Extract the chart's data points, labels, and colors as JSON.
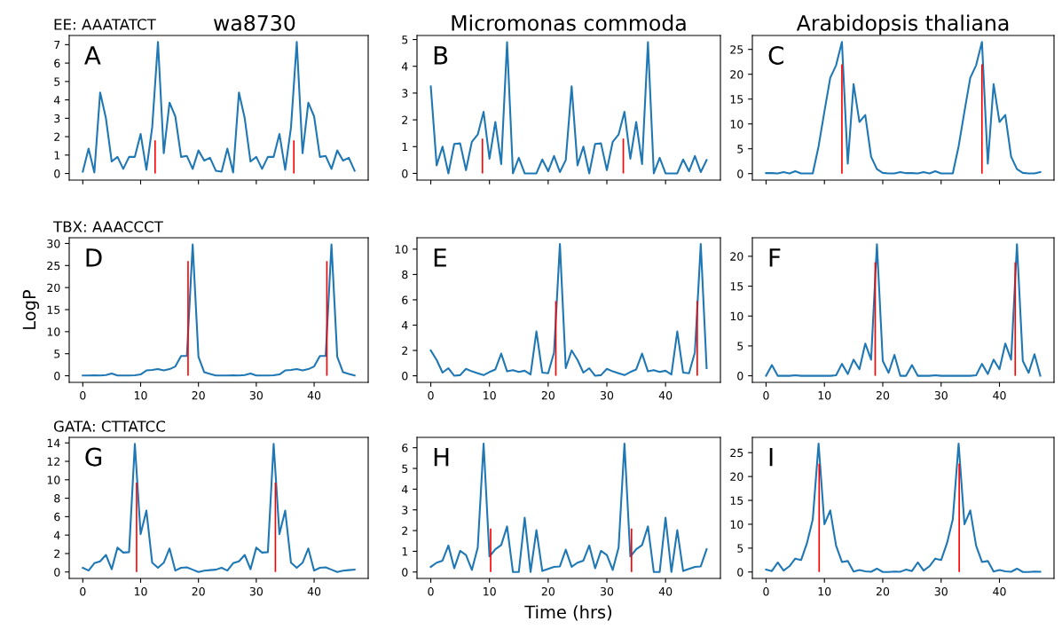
{
  "chart_data": [
    {
      "type": "line",
      "title": "wa8730",
      "subtitle": "EE: AAATATCT",
      "annotations": [
        "A"
      ],
      "tick_labels": "y",
      "x": [
        0,
        1,
        2,
        3,
        4,
        5,
        6,
        7,
        8,
        9,
        10,
        11,
        12,
        13,
        14,
        15,
        16,
        17,
        18,
        19,
        20,
        21,
        22,
        23,
        24,
        25,
        26,
        27,
        28,
        29,
        30,
        31,
        32,
        33,
        34,
        35,
        36,
        37,
        38,
        39,
        40,
        41,
        42,
        43,
        44,
        45,
        46,
        47
      ],
      "xlim": [
        -2.35,
        49.35
      ],
      "xticks": [
        0,
        10,
        20,
        30,
        40
      ],
      "ylim": [
        -0.36,
        7.5
      ],
      "yticks": [
        0,
        1,
        2,
        3,
        4,
        5,
        6,
        7
      ],
      "series": [
        {
          "color": "#1f77b4",
          "values": [
            0.1,
            1.35,
            0.05,
            4.4,
            3.0,
            0.65,
            0.9,
            0.25,
            0.9,
            0.9,
            2.15,
            0.2,
            2.5,
            7.15,
            1.1,
            3.85,
            3.1,
            0.9,
            0.95,
            0.25,
            1.25,
            0.7,
            0.85,
            0.15,
            0.1,
            1.35,
            0.05,
            4.4,
            3.0,
            0.65,
            0.9,
            0.25,
            0.9,
            0.9,
            2.15,
            0.2,
            2.5,
            7.15,
            1.1,
            3.85,
            3.1,
            0.9,
            0.95,
            0.25,
            1.25,
            0.7,
            0.85,
            0.15
          ]
        },
        {
          "type": "bar",
          "color": "#ff0000",
          "x": [
            12.5,
            36.5
          ],
          "values": [
            1.8,
            1.8
          ]
        }
      ]
    },
    {
      "type": "line",
      "title": "Micromonas commoda",
      "annotations": [
        "B"
      ],
      "tick_labels": "y",
      "x": [
        0,
        1,
        2,
        3,
        4,
        5,
        6,
        7,
        8,
        9,
        10,
        11,
        12,
        13,
        14,
        15,
        16,
        17,
        18,
        19,
        20,
        21,
        22,
        23,
        24,
        25,
        26,
        27,
        28,
        29,
        30,
        31,
        32,
        33,
        34,
        35,
        36,
        37,
        38,
        39,
        40,
        41,
        42,
        43,
        44,
        45,
        46,
        47
      ],
      "xlim": [
        -2.35,
        49.35
      ],
      "xticks": [
        0,
        10,
        20,
        30,
        40
      ],
      "ylim": [
        -0.25,
        5.15
      ],
      "yticks": [
        0,
        1,
        2,
        3,
        4,
        5
      ],
      "series": [
        {
          "color": "#1f77b4",
          "values": [
            3.25,
            0.3,
            1.0,
            0.0,
            1.1,
            1.12,
            0.12,
            1.18,
            1.45,
            2.3,
            0.55,
            1.92,
            0.35,
            4.9,
            0.0,
            0.58,
            0.0,
            0.0,
            0.0,
            0.52,
            0.08,
            0.65,
            0.05,
            0.5,
            3.25,
            0.3,
            1.0,
            0.0,
            1.1,
            1.12,
            0.12,
            1.18,
            1.45,
            2.3,
            0.55,
            1.92,
            0.35,
            4.9,
            0.0,
            0.58,
            0.0,
            0.0,
            0.0,
            0.52,
            0.08,
            0.65,
            0.05,
            0.5
          ]
        },
        {
          "type": "bar",
          "color": "#ff0000",
          "x": [
            8.8,
            32.8
          ],
          "values": [
            1.3,
            1.3
          ]
        }
      ]
    },
    {
      "type": "line",
      "title": "Arabidopsis thaliana",
      "annotations": [
        "C"
      ],
      "tick_labels": "y",
      "x": [
        0,
        1,
        2,
        3,
        4,
        5,
        6,
        7,
        8,
        9,
        10,
        11,
        12,
        13,
        14,
        15,
        16,
        17,
        18,
        19,
        20,
        21,
        22,
        23,
        24,
        25,
        26,
        27,
        28,
        29,
        30,
        31,
        32,
        33,
        34,
        35,
        36,
        37,
        38,
        39,
        40,
        41,
        42,
        43,
        44,
        45,
        46,
        47
      ],
      "xlim": [
        -2.35,
        49.35
      ],
      "xticks": [
        0,
        10,
        20,
        30,
        40
      ],
      "ylim": [
        -1.3,
        27.8
      ],
      "yticks": [
        0,
        5,
        10,
        15,
        20,
        25
      ],
      "series": [
        {
          "color": "#1f77b4",
          "values": [
            0.1,
            0.1,
            0.05,
            0.3,
            0.05,
            0.5,
            0.05,
            0.05,
            0.05,
            5.5,
            12.5,
            19.3,
            21.8,
            26.5,
            2.0,
            18.0,
            10.4,
            11.8,
            3.4,
            0.9,
            0.15,
            0.05,
            0.05,
            0.3,
            0.1,
            0.1,
            0.05,
            0.3,
            0.05,
            0.5,
            0.05,
            0.05,
            0.05,
            5.5,
            12.5,
            19.3,
            21.8,
            26.5,
            2.0,
            18.0,
            10.4,
            11.8,
            3.4,
            0.9,
            0.15,
            0.05,
            0.05,
            0.3
          ]
        },
        {
          "type": "bar",
          "color": "#ff0000",
          "x": [
            13,
            37
          ],
          "values": [
            22,
            22
          ]
        }
      ]
    },
    {
      "type": "line",
      "subtitle": "TBX: AAACCCT",
      "ylabel": "LogP",
      "annotations": [
        "D"
      ],
      "x": [
        0,
        1,
        2,
        3,
        4,
        5,
        6,
        7,
        8,
        9,
        10,
        11,
        12,
        13,
        14,
        15,
        16,
        17,
        18,
        19,
        20,
        21,
        22,
        23,
        24,
        25,
        26,
        27,
        28,
        29,
        30,
        31,
        32,
        33,
        34,
        35,
        36,
        37,
        38,
        39,
        40,
        41,
        42,
        43,
        44,
        45,
        46,
        47
      ],
      "xlim": [
        -2.35,
        49.35
      ],
      "xticks": [
        0,
        10,
        20,
        30,
        40
      ],
      "ylim": [
        -1.5,
        31.3
      ],
      "yticks": [
        0,
        5,
        10,
        15,
        20,
        25,
        30
      ],
      "series": [
        {
          "color": "#1f77b4",
          "values": [
            0.05,
            0.05,
            0.1,
            0.05,
            0.15,
            0.5,
            0.05,
            0.05,
            0.05,
            0.1,
            0.3,
            1.2,
            1.3,
            1.5,
            1.2,
            1.5,
            2.1,
            4.5,
            4.5,
            29.8,
            4.3,
            0.8,
            0.4,
            0.05,
            0.05,
            0.05,
            0.1,
            0.05,
            0.15,
            0.5,
            0.05,
            0.05,
            0.05,
            0.1,
            0.3,
            1.2,
            1.3,
            1.5,
            1.2,
            1.5,
            2.1,
            4.5,
            4.5,
            29.8,
            4.3,
            0.8,
            0.4,
            0.05
          ]
        },
        {
          "type": "bar",
          "color": "#ff0000",
          "x": [
            18.2,
            42.2
          ],
          "values": [
            26,
            26
          ]
        }
      ]
    },
    {
      "type": "line",
      "annotations": [
        "E"
      ],
      "x": [
        0,
        1,
        2,
        3,
        4,
        5,
        6,
        7,
        8,
        9,
        10,
        11,
        12,
        13,
        14,
        15,
        16,
        17,
        18,
        19,
        20,
        21,
        22,
        23,
        24,
        25,
        26,
        27,
        28,
        29,
        30,
        31,
        32,
        33,
        34,
        35,
        36,
        37,
        38,
        39,
        40,
        41,
        42,
        43,
        44,
        45,
        46,
        47
      ],
      "xlim": [
        -2.35,
        49.35
      ],
      "xticks": [
        0,
        10,
        20,
        30,
        40
      ],
      "ylim": [
        -0.52,
        10.9
      ],
      "yticks": [
        0,
        2,
        4,
        6,
        8,
        10
      ],
      "series": [
        {
          "color": "#1f77b4",
          "values": [
            2.0,
            1.25,
            0.25,
            0.6,
            0.0,
            0.05,
            0.55,
            0.35,
            0.2,
            0.05,
            0.3,
            0.5,
            1.75,
            0.35,
            0.45,
            0.3,
            0.4,
            0.1,
            3.5,
            0.25,
            0.2,
            1.85,
            10.4,
            0.6,
            2.0,
            1.25,
            0.25,
            0.6,
            0.0,
            0.05,
            0.55,
            0.35,
            0.2,
            0.05,
            0.3,
            0.5,
            1.75,
            0.35,
            0.45,
            0.3,
            0.4,
            0.1,
            3.5,
            0.25,
            0.2,
            1.85,
            10.4,
            0.6
          ]
        },
        {
          "type": "bar",
          "color": "#ff0000",
          "x": [
            21.3,
            45.4
          ],
          "values": [
            5.9,
            5.9
          ]
        }
      ]
    },
    {
      "type": "line",
      "annotations": [
        "F"
      ],
      "x": [
        0,
        1,
        2,
        3,
        4,
        5,
        6,
        7,
        8,
        9,
        10,
        11,
        12,
        13,
        14,
        15,
        16,
        17,
        18,
        19,
        20,
        21,
        22,
        23,
        24,
        25,
        26,
        27,
        28,
        29,
        30,
        31,
        32,
        33,
        34,
        35,
        36,
        37,
        38,
        39,
        40,
        41,
        42,
        43,
        44,
        45,
        46,
        47
      ],
      "xlim": [
        -2.35,
        49.35
      ],
      "xticks": [
        0,
        10,
        20,
        30,
        40
      ],
      "ylim": [
        -1.1,
        23.1
      ],
      "yticks": [
        0,
        5,
        10,
        15,
        20
      ],
      "series": [
        {
          "color": "#1f77b4",
          "values": [
            0.0,
            1.8,
            0.0,
            0.0,
            0.0,
            0.1,
            0.0,
            0.0,
            0.0,
            0.0,
            0.0,
            0.0,
            0.1,
            2.0,
            0.3,
            2.7,
            1.1,
            5.4,
            2.7,
            22.0,
            2.5,
            0.5,
            3.5,
            0.0,
            0.0,
            1.8,
            0.0,
            0.0,
            0.0,
            0.1,
            0.0,
            0.0,
            0.0,
            0.0,
            0.0,
            0.0,
            0.1,
            2.0,
            0.3,
            2.7,
            1.1,
            5.4,
            2.7,
            22.0,
            2.5,
            0.5,
            3.6,
            0.0
          ]
        },
        {
          "type": "bar",
          "color": "#ff0000",
          "x": [
            18.7,
            42.7
          ],
          "values": [
            19,
            19
          ]
        }
      ]
    },
    {
      "type": "line",
      "subtitle": "GATA: CTTATCC",
      "annotations": [
        "G"
      ],
      "x": [
        0,
        1,
        2,
        3,
        4,
        5,
        6,
        7,
        8,
        9,
        10,
        11,
        12,
        13,
        14,
        15,
        16,
        17,
        18,
        19,
        20,
        21,
        22,
        23,
        24,
        25,
        26,
        27,
        28,
        29,
        30,
        31,
        32,
        33,
        34,
        35,
        36,
        37,
        38,
        39,
        40,
        41,
        42,
        43,
        44,
        45,
        46,
        47
      ],
      "xlim": [
        -2.35,
        49.35
      ],
      "xticks": [
        0,
        10,
        20,
        30,
        40
      ],
      "ylim": [
        -0.7,
        14.6
      ],
      "yticks": [
        0,
        2,
        4,
        6,
        8,
        10,
        12,
        14
      ],
      "series": [
        {
          "color": "#1f77b4",
          "values": [
            0.45,
            0.15,
            0.95,
            1.15,
            1.85,
            0.3,
            2.65,
            2.1,
            2.15,
            13.9,
            4.1,
            6.65,
            1.0,
            0.45,
            1.0,
            2.55,
            0.15,
            0.45,
            0.5,
            0.25,
            0.0,
            0.15,
            0.2,
            0.25,
            0.45,
            0.15,
            0.95,
            1.15,
            1.85,
            0.3,
            2.65,
            2.1,
            2.15,
            13.9,
            4.1,
            6.65,
            1.0,
            0.45,
            1.0,
            2.55,
            0.15,
            0.45,
            0.5,
            0.25,
            0.0,
            0.15,
            0.2,
            0.25
          ]
        },
        {
          "type": "bar",
          "color": "#ff0000",
          "x": [
            9.3,
            33.3
          ],
          "values": [
            9.7,
            9.7
          ]
        }
      ]
    },
    {
      "type": "line",
      "xlabel": "Time (hrs)",
      "annotations": [
        "H"
      ],
      "x": [
        0,
        1,
        2,
        3,
        4,
        5,
        6,
        7,
        8,
        9,
        10,
        11,
        12,
        13,
        14,
        15,
        16,
        17,
        18,
        19,
        20,
        21,
        22,
        23,
        24,
        25,
        26,
        27,
        28,
        29,
        30,
        31,
        32,
        33,
        34,
        35,
        36,
        37,
        38,
        39,
        40,
        41,
        42,
        43,
        44,
        45,
        46,
        47
      ],
      "xlim": [
        -2.35,
        49.35
      ],
      "xticks": [
        0,
        10,
        20,
        30,
        40
      ],
      "ylim": [
        -0.31,
        6.5
      ],
      "yticks": [
        0,
        1,
        2,
        3,
        4,
        5,
        6
      ],
      "series": [
        {
          "color": "#1f77b4",
          "values": [
            0.25,
            0.45,
            0.55,
            1.28,
            0.18,
            1.02,
            0.82,
            0.1,
            1.18,
            6.2,
            0.75,
            1.1,
            1.3,
            2.2,
            0.0,
            0.0,
            2.62,
            0.0,
            2.02,
            0.05,
            0.15,
            0.25,
            0.27,
            1.08,
            0.25,
            0.45,
            0.55,
            1.28,
            0.18,
            1.02,
            0.82,
            0.1,
            1.18,
            6.2,
            0.75,
            1.1,
            1.3,
            2.2,
            0.0,
            0.0,
            2.62,
            0.0,
            2.02,
            0.05,
            0.15,
            0.25,
            0.27,
            1.1
          ]
        },
        {
          "type": "bar",
          "color": "#ff0000",
          "x": [
            10.2,
            34.2
          ],
          "values": [
            2.1,
            2.1
          ]
        }
      ]
    },
    {
      "type": "line",
      "annotations": [
        "I"
      ],
      "x": [
        0,
        1,
        2,
        3,
        4,
        5,
        6,
        7,
        8,
        9,
        10,
        11,
        12,
        13,
        14,
        15,
        16,
        17,
        18,
        19,
        20,
        21,
        22,
        23,
        24,
        25,
        26,
        27,
        28,
        29,
        30,
        31,
        32,
        33,
        34,
        35,
        36,
        37,
        38,
        39,
        40,
        41,
        42,
        43,
        44,
        45,
        46,
        47
      ],
      "xlim": [
        -2.35,
        49.35
      ],
      "xticks": [
        0,
        10,
        20,
        30,
        40
      ],
      "ylim": [
        -1.35,
        28.2
      ],
      "yticks": [
        0,
        5,
        10,
        15,
        20,
        25
      ],
      "series": [
        {
          "color": "#1f77b4",
          "values": [
            0.5,
            0.2,
            2.0,
            0.3,
            1.2,
            2.8,
            2.5,
            6.0,
            11.0,
            26.9,
            10.0,
            12.9,
            5.5,
            2.1,
            2.3,
            0.1,
            0.4,
            0.15,
            0.05,
            0.7,
            0.0,
            0.0,
            0.1,
            0.05,
            0.5,
            0.2,
            2.0,
            0.3,
            1.2,
            2.8,
            2.5,
            6.0,
            11.0,
            26.9,
            10.0,
            12.9,
            5.5,
            2.1,
            2.3,
            0.1,
            0.4,
            0.15,
            0.05,
            0.7,
            0.0,
            0.0,
            0.1,
            0.05
          ]
        },
        {
          "type": "bar",
          "color": "#ff0000",
          "x": [
            9.1,
            33.1
          ],
          "values": [
            22.7,
            22.7
          ]
        }
      ]
    }
  ]
}
